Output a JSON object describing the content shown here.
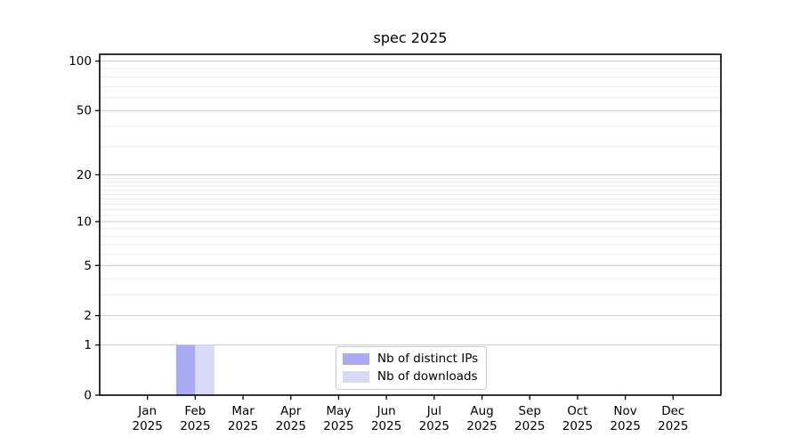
{
  "chart_data": {
    "type": "bar",
    "title": "spec 2025",
    "categories": [
      "Jan",
      "Feb",
      "Mar",
      "Apr",
      "May",
      "Jun",
      "Jul",
      "Aug",
      "Sep",
      "Oct",
      "Nov",
      "Dec"
    ],
    "category_year": "2025",
    "series": [
      {
        "name": "Nb of distinct IPs",
        "color": "#a9a9f4",
        "values": [
          0,
          1,
          0,
          0,
          0,
          0,
          0,
          0,
          0,
          0,
          0,
          0
        ]
      },
      {
        "name": "Nb of downloads",
        "color": "#d9d9f8",
        "values": [
          0,
          1,
          0,
          0,
          0,
          0,
          0,
          0,
          0,
          0,
          0,
          0
        ]
      }
    ],
    "y_scale": "log1p",
    "ylim": [
      0,
      110
    ],
    "y_major_ticks": [
      0,
      1,
      2,
      5,
      10,
      20,
      50,
      100
    ],
    "y_minor_gridlines": [
      3,
      4,
      6,
      7,
      8,
      9,
      11,
      12,
      13,
      14,
      15,
      16,
      17,
      18,
      19,
      30,
      40,
      60,
      70,
      80,
      90
    ],
    "grid": "horizontal",
    "legend_position": "lower center",
    "colors": {
      "background": "#ffffff",
      "axis": "#000000",
      "major_grid": "#cccccc",
      "minor_grid": "#ececec",
      "text": "#000000",
      "legend_border": "#cccccc"
    }
  }
}
